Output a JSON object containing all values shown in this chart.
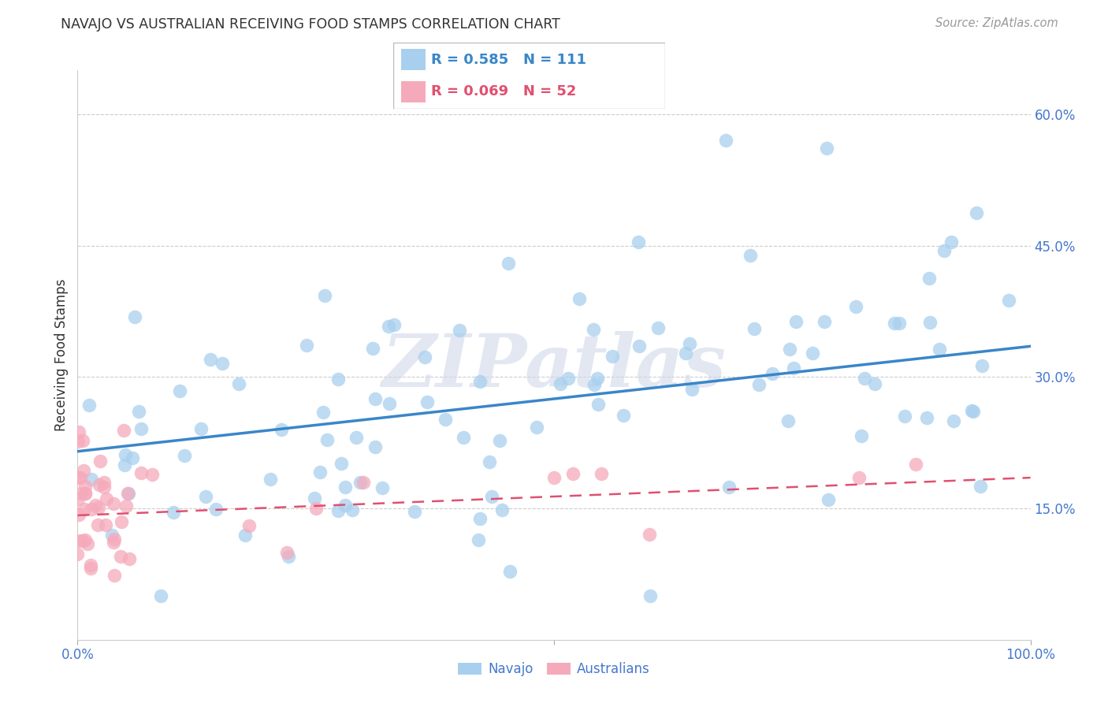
{
  "title": "NAVAJO VS AUSTRALIAN RECEIVING FOOD STAMPS CORRELATION CHART",
  "source": "Source: ZipAtlas.com",
  "ylabel": "Receiving Food Stamps",
  "xlim": [
    0,
    1.0
  ],
  "ylim": [
    0.0,
    0.65
  ],
  "ytick_positions": [
    0.15,
    0.3,
    0.45,
    0.6
  ],
  "ytick_labels": [
    "15.0%",
    "30.0%",
    "45.0%",
    "60.0%"
  ],
  "xtick_positions": [
    0.0,
    0.5,
    1.0
  ],
  "xtick_labels": [
    "0.0%",
    "",
    "100.0%"
  ],
  "navajo_R": 0.585,
  "navajo_N": 111,
  "australian_R": 0.069,
  "australian_N": 52,
  "navajo_color": "#a8d0ee",
  "navajo_line_color": "#3a86c8",
  "australian_color": "#f5aabb",
  "australian_line_color": "#e05070",
  "watermark": "ZIPatlas",
  "watermark_color": "#d0d8e8",
  "title_color": "#333333",
  "axis_label_color": "#4477cc",
  "grid_color": "#cccccc",
  "navajo_line_start_y": 0.215,
  "navajo_line_end_y": 0.335,
  "australian_line_start_y": 0.142,
  "australian_line_end_y": 0.185
}
